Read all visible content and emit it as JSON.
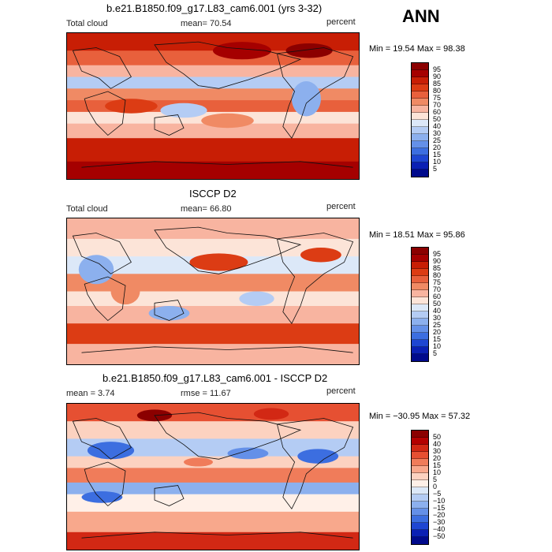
{
  "season": "ANN",
  "panels": [
    {
      "title": "b.e21.B1850.f09_g17.L83_cam6.001 (yrs 3-32)",
      "left_label": "Total cloud",
      "center_label": "mean=  70.54",
      "right_label": "percent",
      "minmax": "Min =  19.54 Max =  98.38",
      "scale": "abs",
      "colorbar_labels": [
        "95",
        "90",
        "85",
        "80",
        "75",
        "70",
        "60",
        "50",
        "40",
        "30",
        "25",
        "20",
        "15",
        "10",
        "5"
      ]
    },
    {
      "title": "ISCCP D2",
      "left_label": "Total cloud",
      "center_label": "mean=  66.80",
      "right_label": "percent",
      "minmax": "Min =  18.51 Max =  95.86",
      "scale": "abs",
      "colorbar_labels": [
        "95",
        "90",
        "85",
        "80",
        "75",
        "70",
        "60",
        "50",
        "40",
        "30",
        "25",
        "20",
        "15",
        "10",
        "5"
      ]
    },
    {
      "title": "b.e21.B1850.f09_g17.L83_cam6.001 - ISCCP D2",
      "left_label": "mean =   3.74",
      "center_label": "rmse =  11.67",
      "right_label": "percent",
      "minmax": "Min = −30.95 Max =  57.32",
      "scale": "diff",
      "colorbar_labels": [
        "50",
        "40",
        "30",
        "20",
        "15",
        "10",
        "5",
        "0",
        "−5",
        "−10",
        "−15",
        "−20",
        "−30",
        "−40",
        "−50"
      ]
    }
  ],
  "colors": {
    "abs_scale": [
      "#8b0000",
      "#a50000",
      "#c81e05",
      "#dc3c14",
      "#e8603c",
      "#f08a64",
      "#f8b4a0",
      "#fce4d8",
      "#dce8f8",
      "#b4ccf4",
      "#8cb0ee",
      "#6490e8",
      "#3c6ee0",
      "#1e46d2",
      "#0a20b4",
      "#000a8c"
    ],
    "diff_scale": [
      "#8b0000",
      "#b40000",
      "#d22814",
      "#e65032",
      "#f07c5a",
      "#f8a88c",
      "#fcd2c0",
      "#fff0e8",
      "#dce8f8",
      "#b4ccf4",
      "#8cb0ee",
      "#6490e8",
      "#3c6ee0",
      "#1e46d2",
      "#0a20b4",
      "#000a8c"
    ]
  }
}
